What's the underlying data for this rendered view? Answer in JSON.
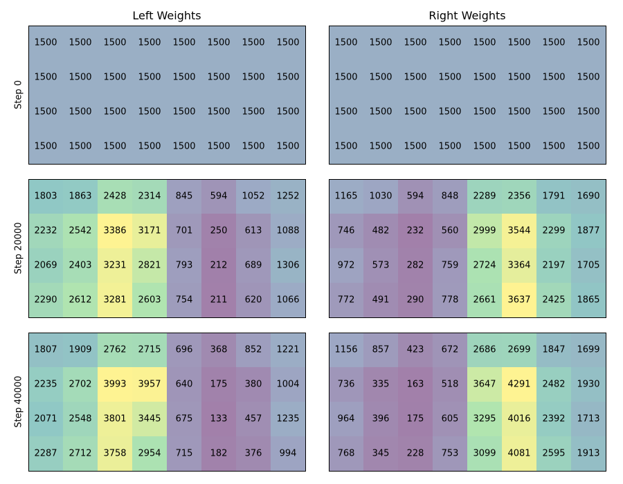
{
  "chart_data": {
    "type": "heatmap",
    "column_titles": [
      "Left Weights",
      "Right Weights"
    ],
    "row_labels": [
      "Step 0",
      "Step 20000",
      "Step 40000"
    ],
    "colormap": "viridis",
    "value_range": [
      0,
      4300
    ],
    "grid": false,
    "panels": [
      {
        "step": "Step 0",
        "left": [
          [
            1500,
            1500,
            1500,
            1500,
            1500,
            1500,
            1500,
            1500
          ],
          [
            1500,
            1500,
            1500,
            1500,
            1500,
            1500,
            1500,
            1500
          ],
          [
            1500,
            1500,
            1500,
            1500,
            1500,
            1500,
            1500,
            1500
          ],
          [
            1500,
            1500,
            1500,
            1500,
            1500,
            1500,
            1500,
            1500
          ]
        ],
        "right": [
          [
            1500,
            1500,
            1500,
            1500,
            1500,
            1500,
            1500,
            1500
          ],
          [
            1500,
            1500,
            1500,
            1500,
            1500,
            1500,
            1500,
            1500
          ],
          [
            1500,
            1500,
            1500,
            1500,
            1500,
            1500,
            1500,
            1500
          ],
          [
            1500,
            1500,
            1500,
            1500,
            1500,
            1500,
            1500,
            1500
          ]
        ]
      },
      {
        "step": "Step 20000",
        "left": [
          [
            1803,
            1863,
            2428,
            2314,
            845,
            594,
            1052,
            1252
          ],
          [
            2232,
            2542,
            3386,
            3171,
            701,
            250,
            613,
            1088
          ],
          [
            2069,
            2403,
            3231,
            2821,
            793,
            212,
            689,
            1306
          ],
          [
            2290,
            2612,
            3281,
            2603,
            754,
            211,
            620,
            1066
          ]
        ],
        "right": [
          [
            1165,
            1030,
            594,
            848,
            2289,
            2356,
            1791,
            1690
          ],
          [
            746,
            482,
            232,
            560,
            2999,
            3544,
            2299,
            1877
          ],
          [
            972,
            573,
            282,
            759,
            2724,
            3364,
            2197,
            1705
          ],
          [
            772,
            491,
            290,
            778,
            2661,
            3637,
            2425,
            1865
          ]
        ]
      },
      {
        "step": "Step 40000",
        "left": [
          [
            1807,
            1909,
            2762,
            2715,
            696,
            368,
            852,
            1221
          ],
          [
            2235,
            2702,
            3993,
            3957,
            640,
            175,
            380,
            1004
          ],
          [
            2071,
            2548,
            3801,
            3445,
            675,
            133,
            457,
            1235
          ],
          [
            2287,
            2712,
            3758,
            2954,
            715,
            182,
            376,
            994
          ]
        ],
        "right": [
          [
            1156,
            857,
            423,
            672,
            2686,
            2699,
            1847,
            1699
          ],
          [
            736,
            335,
            163,
            518,
            3647,
            4291,
            2482,
            1930
          ],
          [
            964,
            396,
            175,
            605,
            3295,
            4016,
            2392,
            1713
          ],
          [
            768,
            345,
            228,
            753,
            3099,
            4081,
            2595,
            1913
          ]
        ]
      }
    ]
  }
}
